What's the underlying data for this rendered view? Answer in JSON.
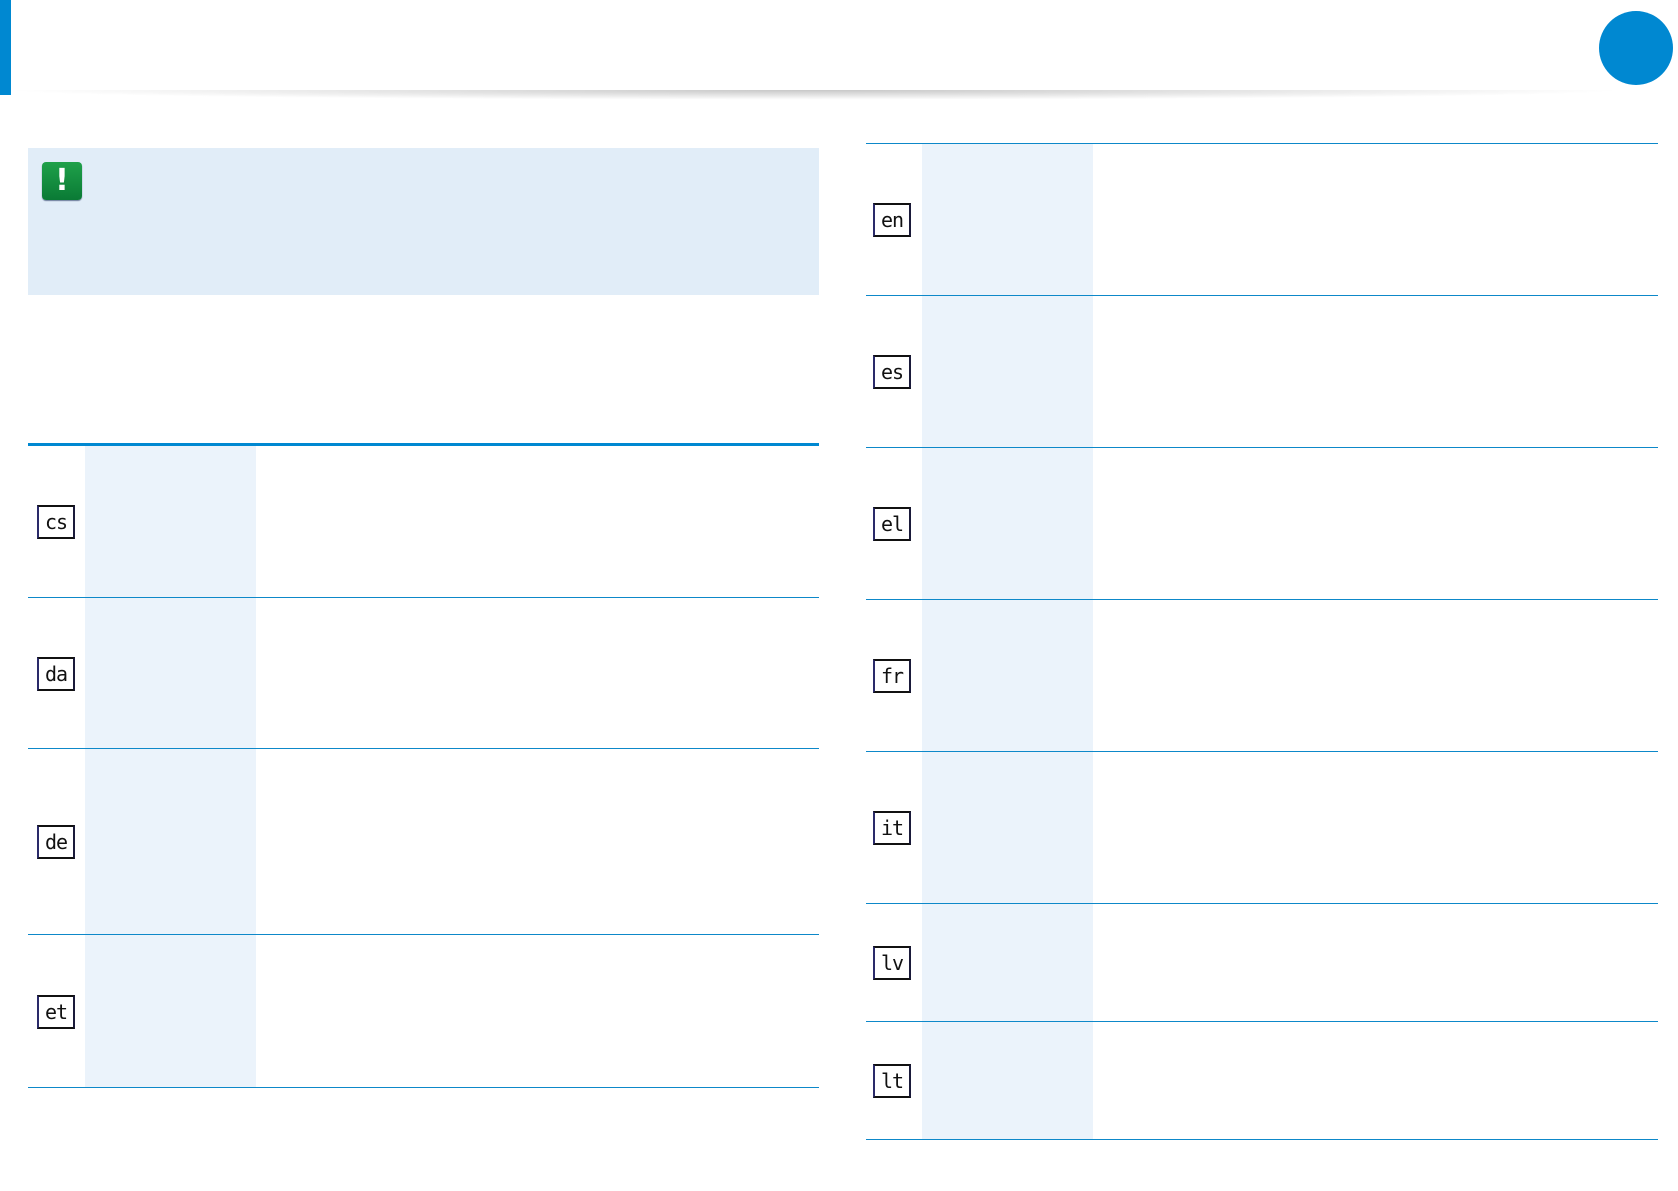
{
  "colors": {
    "accent": "#0088d1",
    "note_bg": "#e1edf8",
    "column_shade": "#ebf3fb",
    "note_icon": "#0f8a3c"
  },
  "note": {
    "icon": "exclamation-icon",
    "glyph": "!"
  },
  "left_table": {
    "rows": [
      {
        "code": "cs"
      },
      {
        "code": "da"
      },
      {
        "code": "de"
      },
      {
        "code": "et"
      }
    ]
  },
  "right_table": {
    "rows": [
      {
        "code": "en"
      },
      {
        "code": "es"
      },
      {
        "code": "el"
      },
      {
        "code": "fr"
      },
      {
        "code": "it"
      },
      {
        "code": "lv"
      },
      {
        "code": "lt"
      }
    ]
  }
}
